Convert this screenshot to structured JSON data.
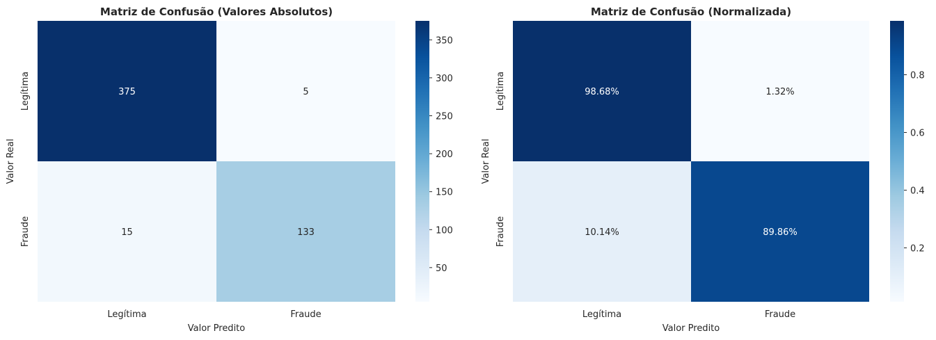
{
  "chart_data": [
    {
      "type": "heatmap",
      "title": "Matriz de Confusão (Valores Absolutos)",
      "xlabel": "Valor Predito",
      "ylabel": "Valor Real",
      "x_categories": [
        "Legítima",
        "Fraude"
      ],
      "y_categories": [
        "Legítima",
        "Fraude"
      ],
      "values": [
        [
          375,
          5
        ],
        [
          15,
          133
        ]
      ],
      "annotations": [
        [
          "375",
          "5"
        ],
        [
          "15",
          "133"
        ]
      ],
      "colormap": "Blues",
      "vmin": 5,
      "vmax": 375,
      "colorbar_ticks": [
        50,
        100,
        150,
        200,
        250,
        300,
        350
      ],
      "colorbar_tick_labels": [
        "50",
        "100",
        "150",
        "200",
        "250",
        "300",
        "350"
      ]
    },
    {
      "type": "heatmap",
      "title": "Matriz de Confusão (Normalizada)",
      "xlabel": "Valor Predito",
      "ylabel": "Valor Real",
      "x_categories": [
        "Legítima",
        "Fraude"
      ],
      "y_categories": [
        "Legítima",
        "Fraude"
      ],
      "values": [
        [
          0.9868,
          0.0132
        ],
        [
          0.1014,
          0.8986
        ]
      ],
      "annotations": [
        [
          "98.68%",
          "1.32%"
        ],
        [
          "10.14%",
          "89.86%"
        ]
      ],
      "colormap": "Blues",
      "vmin": 0.0132,
      "vmax": 0.9868,
      "colorbar_ticks": [
        0.2,
        0.4,
        0.6,
        0.8
      ],
      "colorbar_tick_labels": [
        "0.2",
        "0.4",
        "0.6",
        "0.8"
      ]
    }
  ]
}
